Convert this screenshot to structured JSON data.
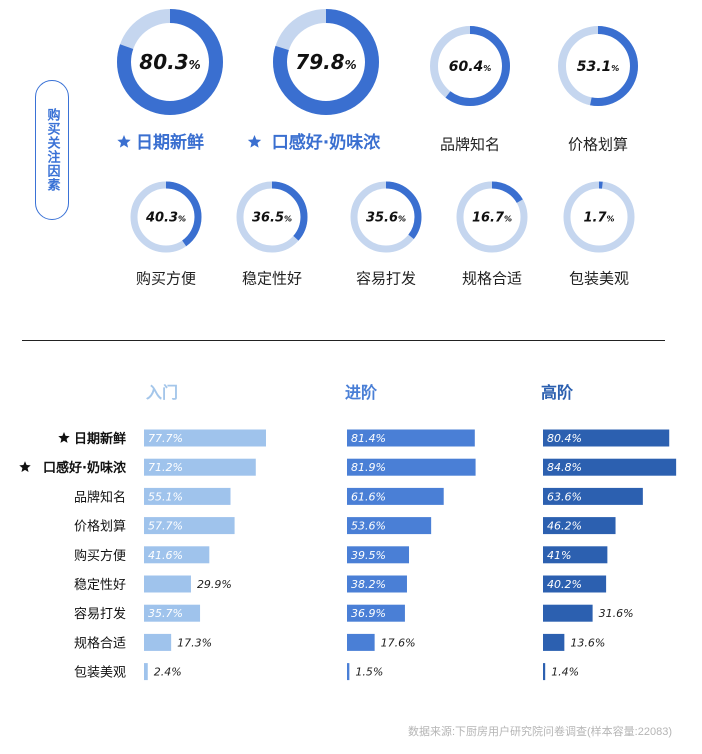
{
  "section_label": "购买关注因素",
  "source": "数据来源:下厨房用户研究院问卷调查(样本容量:22083)",
  "colors": {
    "ring_main": "#3a6fd0",
    "ring_track": "#c5d6ef",
    "tier1": "#9fc3ec",
    "tier2": "#4a7fd6",
    "tier3": "#2c60b0",
    "tier1_header": "#a4c6ea",
    "tier2_header": "#4a7fd6",
    "tier3_header": "#2c60b0"
  },
  "icons": {
    "star": "star-icon"
  },
  "chart_data": [
    {
      "type": "pie",
      "name": "购买关注因素",
      "items": [
        {
          "label": "日期新鲜",
          "value": 80.3,
          "display": "80.3",
          "starred": true
        },
        {
          "label": "口感好·奶味浓",
          "value": 79.8,
          "display": "79.8",
          "starred": true
        },
        {
          "label": "品牌知名",
          "value": 60.4,
          "display": "60.4",
          "starred": false
        },
        {
          "label": "价格划算",
          "value": 53.1,
          "display": "53.1",
          "starred": false
        },
        {
          "label": "购买方便",
          "value": 40.3,
          "display": "40.3",
          "starred": false
        },
        {
          "label": "稳定性好",
          "value": 36.5,
          "display": "36.5",
          "starred": false
        },
        {
          "label": "容易打发",
          "value": 35.6,
          "display": "35.6",
          "starred": false
        },
        {
          "label": "规格合适",
          "value": 16.7,
          "display": "16.7",
          "starred": false
        },
        {
          "label": "包装美观",
          "value": 1.7,
          "display": "1.7",
          "starred": false
        }
      ],
      "unit": "%"
    },
    {
      "type": "bar",
      "orientation": "horizontal",
      "categories": [
        "日期新鲜",
        "口感好·奶味浓",
        "品牌知名",
        "价格划算",
        "购买方便",
        "稳定性好",
        "容易打发",
        "规格合适",
        "包装美观"
      ],
      "starred": [
        true,
        true,
        false,
        false,
        false,
        false,
        false,
        false,
        false
      ],
      "series": [
        {
          "name": "入门",
          "values": [
            77.7,
            71.2,
            55.1,
            57.7,
            41.6,
            29.9,
            35.7,
            17.3,
            2.4
          ],
          "labels": [
            "77.7%",
            "71.2%",
            "55.1%",
            "57.7%",
            "41.6%",
            "29.9%",
            "35.7%",
            "17.3%",
            "2.4%"
          ]
        },
        {
          "name": "进阶",
          "values": [
            81.4,
            81.9,
            61.6,
            53.6,
            39.5,
            38.2,
            36.9,
            17.6,
            1.5
          ],
          "labels": [
            "81.4%",
            "81.9%",
            "61.6%",
            "53.6%",
            "39.5%",
            "38.2%",
            "36.9%",
            "17.6%",
            "1.5%"
          ]
        },
        {
          "name": "高阶",
          "values": [
            80.4,
            84.8,
            63.6,
            46.2,
            41,
            40.2,
            31.6,
            13.6,
            1.4
          ],
          "labels": [
            "80.4%",
            "84.8%",
            "63.6%",
            "46.2%",
            "41%",
            "40.2%",
            "31.6%",
            "13.6%",
            "1.4%"
          ]
        }
      ]
    }
  ]
}
